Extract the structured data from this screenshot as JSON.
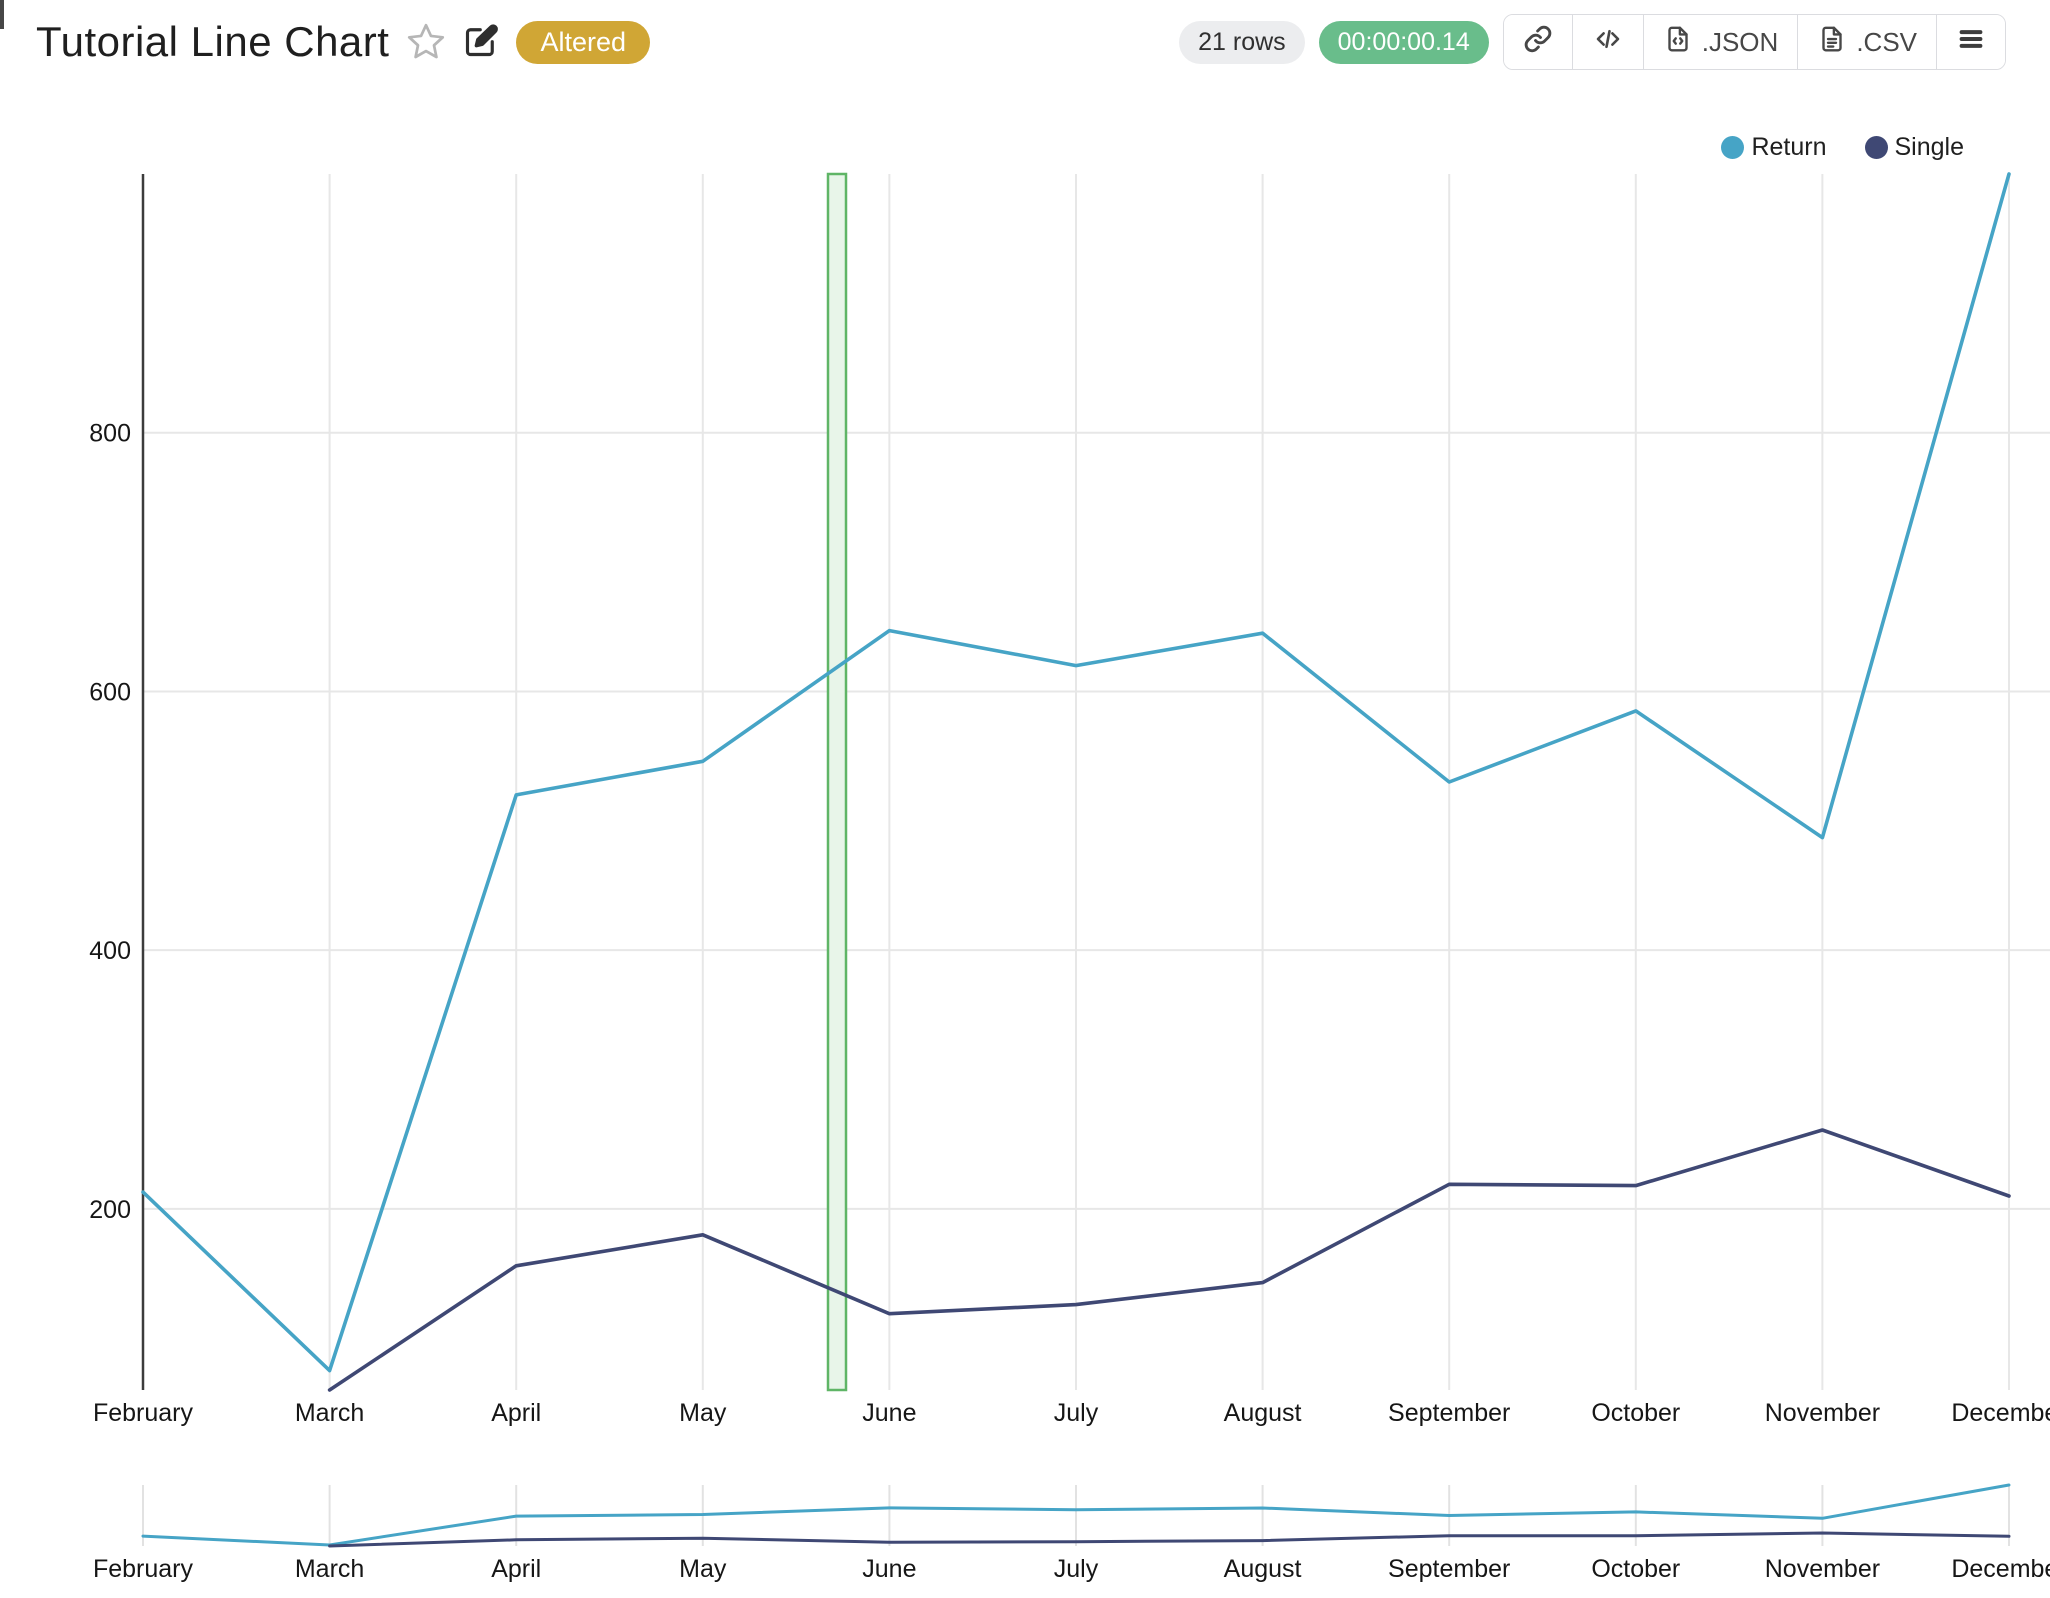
{
  "header": {
    "title": "Tutorial Line Chart",
    "status_badge": "Altered",
    "rows_count": "21 rows",
    "elapsed_time": "00:00:00.14",
    "export_json_label": ".JSON",
    "export_csv_label": ".CSV"
  },
  "colors": {
    "teal": "#46a4c6",
    "navy": "#3f4874",
    "gold_badge": "#d0a635",
    "green_badge": "#69bd8b",
    "grid": "#e7e7e7",
    "axis": "#3c3c3c",
    "highlight_fill": "#e8f5e9",
    "highlight_stroke": "#5fb566"
  },
  "chart_data": {
    "type": "line",
    "title": "Tutorial Line Chart",
    "categories": [
      "February",
      "March",
      "April",
      "May",
      "June",
      "July",
      "August",
      "September",
      "October",
      "November",
      "December"
    ],
    "series": [
      {
        "name": "Return",
        "color": "#46a4c6",
        "start_index": 0,
        "values": [
          213,
          75,
          520,
          546,
          647,
          620,
          645,
          530,
          585,
          487,
          1000
        ]
      },
      {
        "name": "Single",
        "color": "#3f4874",
        "start_index": 1,
        "values": [
          60,
          156,
          180,
          119,
          126,
          143,
          219,
          218,
          261,
          210
        ]
      }
    ],
    "xlabel": "",
    "ylabel": "",
    "ylim": [
      60,
      1000
    ],
    "yticks": [
      200,
      400,
      600,
      800
    ],
    "grid": true,
    "legend_position": "top-right",
    "has_navigator_chart": true,
    "highlight_band": {
      "between": [
        "May",
        "June"
      ],
      "fill": "#e8f5e9",
      "stroke": "#5fb566"
    }
  }
}
